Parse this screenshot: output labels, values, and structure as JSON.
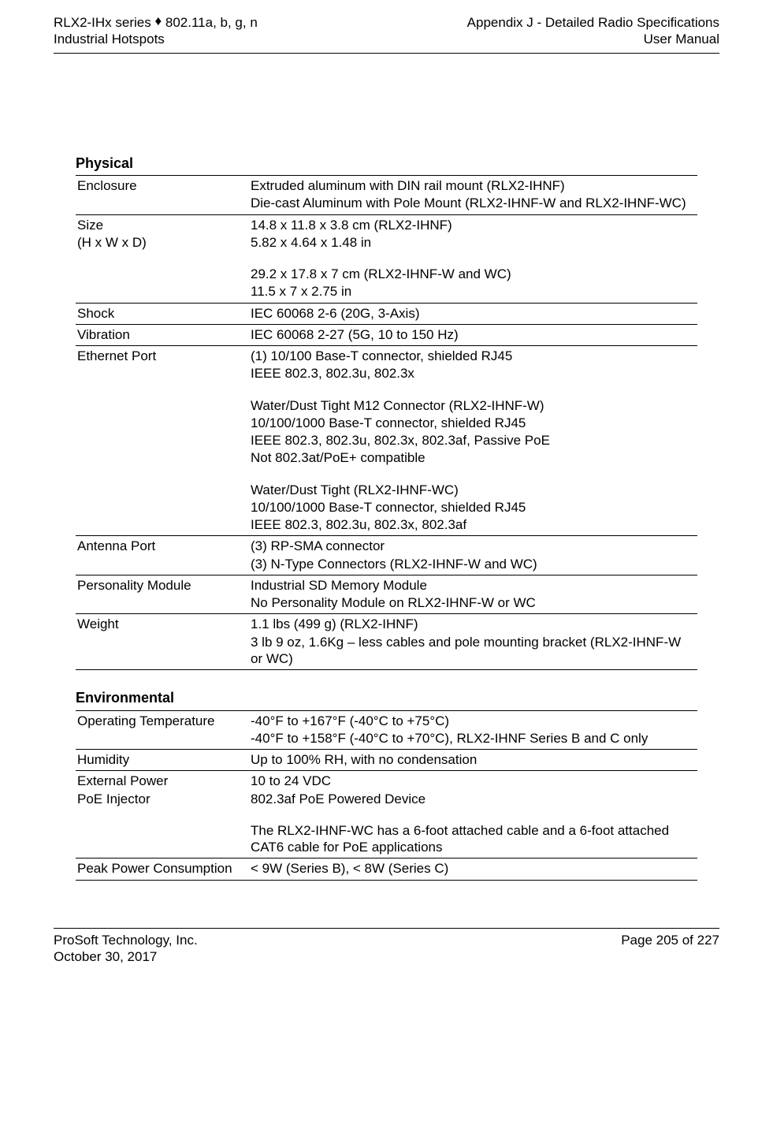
{
  "header": {
    "left_line1_a": "RLX2-IHx series ",
    "left_line1_b": " 802.11a, b, g, n",
    "left_line2": "Industrial Hotspots",
    "right_line1": "Appendix J - Detailed Radio Specifications",
    "right_line2": "User Manual"
  },
  "physical": {
    "title": "Physical",
    "rows": [
      {
        "label": [
          "Enclosure"
        ],
        "value": [
          "Extruded aluminum with DIN rail mount (RLX2-IHNF)",
          "Die-cast Aluminum with Pole Mount (RLX2-IHNF-W and RLX2-IHNF-WC)"
        ]
      },
      {
        "label": [
          "Size",
          "(H x W x D)"
        ],
        "value": [
          "14.8 x 11.8 x 3.8 cm (RLX2-IHNF)",
          "5.82 x 4.64 x 1.48 in",
          "",
          "29.2 x 17.8 x 7 cm (RLX2-IHNF-W and WC)",
          "11.5 x 7 x 2.75 in"
        ]
      },
      {
        "label": [
          "Shock"
        ],
        "value": [
          "IEC 60068 2-6 (20G, 3-Axis)"
        ]
      },
      {
        "label": [
          "Vibration"
        ],
        "value": [
          "IEC 60068 2-27 (5G, 10 to 150 Hz)"
        ]
      },
      {
        "label": [
          "Ethernet Port"
        ],
        "value": [
          "(1) 10/100 Base-T connector, shielded RJ45",
          "IEEE 802.3, 802.3u, 802.3x",
          "",
          "Water/Dust Tight M12 Connector (RLX2-IHNF-W)",
          "10/100/1000 Base-T connector, shielded RJ45",
          "IEEE 802.3, 802.3u, 802.3x, 802.3af, Passive PoE",
          "Not 802.3at/PoE+ compatible",
          "",
          "Water/Dust Tight (RLX2-IHNF-WC)",
          "10/100/1000 Base-T connector, shielded RJ45",
          "IEEE 802.3, 802.3u, 802.3x, 802.3af"
        ]
      },
      {
        "label": [
          "Antenna Port"
        ],
        "value": [
          "(3) RP-SMA connector",
          "(3) N-Type Connectors (RLX2-IHNF-W and WC)"
        ]
      },
      {
        "label": [
          "Personality Module"
        ],
        "value": [
          "Industrial SD Memory Module",
          "No Personality Module on RLX2-IHNF-W or WC"
        ]
      },
      {
        "label": [
          "Weight"
        ],
        "value": [
          "1.1 lbs (499 g) (RLX2-IHNF)",
          "3 lb 9 oz, 1.6Kg – less cables and pole mounting bracket (RLX2-IHNF-W or WC)"
        ]
      }
    ]
  },
  "environmental": {
    "title": "Environmental",
    "rows": [
      {
        "label": [
          "Operating Temperature"
        ],
        "value": [
          "-40°F to +167°F (-40°C to +75°C)",
          "-40°F to +158°F (-40°C to +70°C), RLX2-IHNF Series B and C only"
        ]
      },
      {
        "label": [
          "Humidity"
        ],
        "value": [
          "Up to 100% RH, with no condensation"
        ]
      },
      {
        "label": [
          "External Power",
          "PoE Injector"
        ],
        "value": [
          "10 to 24 VDC",
          "802.3af PoE Powered Device",
          "",
          "The RLX2-IHNF-WC has a 6-foot attached cable and a 6-foot attached CAT6 cable for PoE applications"
        ]
      },
      {
        "label": [
          "Peak Power Consumption"
        ],
        "value": [
          "< 9W (Series B), < 8W (Series C)"
        ]
      }
    ]
  },
  "footer": {
    "left_line1": "ProSoft Technology, Inc.",
    "left_line2": "October 30, 2017",
    "right_line1": "Page 205 of 227"
  }
}
